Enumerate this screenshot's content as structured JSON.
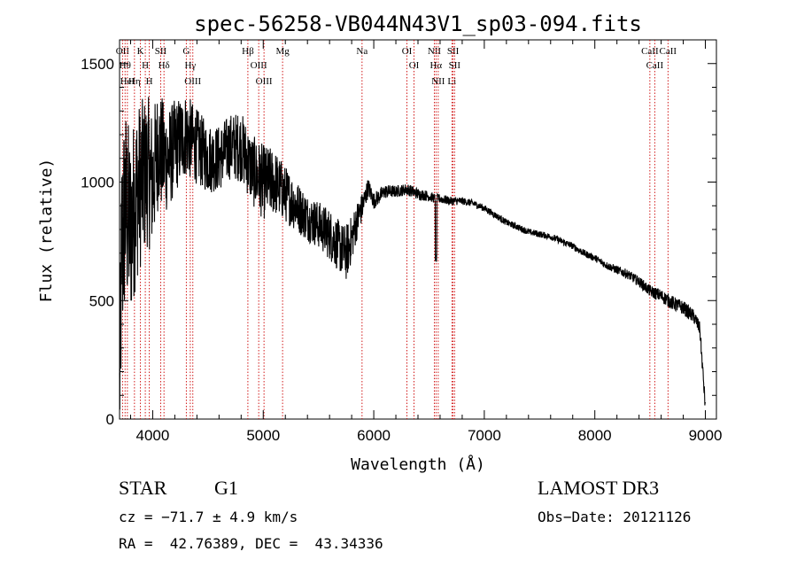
{
  "chart_data": {
    "type": "line",
    "title": "spec-56258-VB044N43V1_sp03-094.fits",
    "xlabel": "Wavelength (Å)",
    "ylabel": "Flux (relative)",
    "xlim": [
      3700,
      9100
    ],
    "ylim": [
      0,
      1600
    ],
    "xticks": [
      4000,
      5000,
      6000,
      7000,
      8000,
      9000
    ],
    "xtick_labels": [
      "4000",
      "5000",
      "6000",
      "7000",
      "8000",
      "9000"
    ],
    "yticks": [
      0,
      500,
      1000,
      1500
    ],
    "ytick_labels": [
      "0",
      "500",
      "1000",
      "1500"
    ],
    "grid": false,
    "series": [
      {
        "name": "flux",
        "envelope_x": [
          3700,
          3720,
          3750,
          3800,
          3850,
          3900,
          3950,
          4000,
          4050,
          4100,
          4150,
          4200,
          4300,
          4400,
          4500,
          4600,
          4700,
          4800,
          4900,
          5000,
          5100,
          5200,
          5300,
          5400,
          5500,
          5600,
          5700,
          5750,
          5800,
          5850,
          5900,
          5950,
          6000,
          6100,
          6200,
          6300,
          6400,
          6500,
          6560,
          6600,
          6700,
          6800,
          6900,
          7000,
          7100,
          7200,
          7300,
          7400,
          7500,
          7600,
          7700,
          7800,
          7900,
          8000,
          8100,
          8200,
          8300,
          8400,
          8500,
          8600,
          8700,
          8800,
          8900,
          8950,
          9000
        ],
        "envelope_y": [
          100,
          700,
          900,
          800,
          950,
          1000,
          1050,
          1000,
          1150,
          1100,
          1100,
          1150,
          1200,
          1150,
          1100,
          1100,
          1150,
          1150,
          1050,
          1000,
          1000,
          950,
          900,
          850,
          820,
          780,
          720,
          700,
          760,
          840,
          900,
          980,
          920,
          960,
          960,
          970,
          950,
          940,
          930,
          930,
          920,
          920,
          910,
          890,
          860,
          830,
          810,
          790,
          780,
          770,
          750,
          730,
          700,
          680,
          650,
          630,
          610,
          580,
          540,
          520,
          490,
          470,
          430,
          380,
          50
        ],
        "noise_amp": [
          300,
          500,
          450,
          400,
          380,
          350,
          330,
          300,
          260,
          240,
          220,
          200,
          180,
          160,
          150,
          140,
          140,
          150,
          150,
          160,
          140,
          120,
          110,
          100,
          100,
          110,
          110,
          120,
          100,
          80,
          60,
          40,
          35,
          30,
          25,
          25,
          25,
          22,
          20,
          20,
          18,
          16,
          15,
          15,
          14,
          14,
          14,
          14,
          14,
          14,
          14,
          14,
          15,
          15,
          16,
          18,
          20,
          22,
          25,
          28,
          30,
          30,
          30,
          30,
          30
        ]
      }
    ],
    "lines": [
      {
        "x": 3727,
        "label": "OII"
      },
      {
        "x": 3750,
        "label": "Hθ"
      },
      {
        "x": 3771,
        "label": "HeI"
      },
      {
        "x": 3835,
        "label": "Hη"
      },
      {
        "x": 3889,
        "label": "K"
      },
      {
        "x": 3933,
        "label": "H"
      },
      {
        "x": 3969,
        "label": "H"
      },
      {
        "x": 4072,
        "label": "SII"
      },
      {
        "x": 4102,
        "label": "Hδ"
      },
      {
        "x": 4304,
        "label": "G"
      },
      {
        "x": 4340,
        "label": "Hγ"
      },
      {
        "x": 4363,
        "label": "OIII"
      },
      {
        "x": 4861,
        "label": "Hβ"
      },
      {
        "x": 4959,
        "label": "OIII"
      },
      {
        "x": 5007,
        "label": "OIII"
      },
      {
        "x": 5175,
        "label": "Mg"
      },
      {
        "x": 5894,
        "label": "Na"
      },
      {
        "x": 6300,
        "label": "OI"
      },
      {
        "x": 6364,
        "label": "OI"
      },
      {
        "x": 6548,
        "label": "NII"
      },
      {
        "x": 6563,
        "label": "Hα"
      },
      {
        "x": 6583,
        "label": "NII"
      },
      {
        "x": 6707,
        "label": "Li"
      },
      {
        "x": 6717,
        "label": "SII"
      },
      {
        "x": 6731,
        "label": "SII"
      },
      {
        "x": 8498,
        "label": "CaII"
      },
      {
        "x": 8542,
        "label": "CaII"
      },
      {
        "x": 8662,
        "label": "CaII"
      }
    ]
  },
  "info": {
    "object_class": "STAR",
    "subclass": "G1",
    "survey": "LAMOST DR3",
    "velocity": "cz = −71.7 ± 4.9 km/s",
    "obs_date": "Obs−Date: 20121126",
    "coords": "RA =  42.76389, DEC =  43.34336"
  },
  "colors": {
    "line_marker": "#cc0000",
    "spectrum": "#000000",
    "axes": "#000000"
  }
}
